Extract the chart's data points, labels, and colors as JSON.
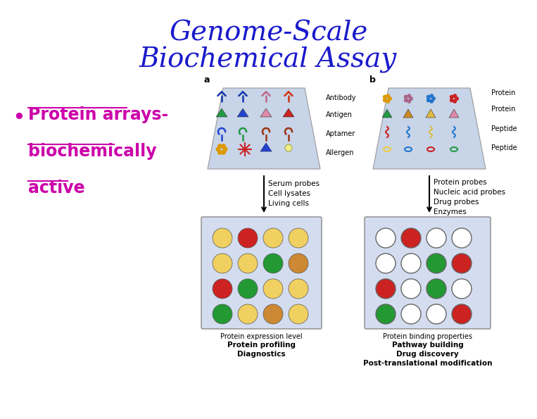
{
  "title_line1": "Genome-Scale",
  "title_line2": "Biochemical Assay",
  "title_color": "#1a1acc",
  "title_fontsize": 28,
  "title_fontstyle": "italic",
  "bullet_text_line1": "Protein arrays-",
  "bullet_text_line2": "biochemically",
  "bullet_text_line3": "active",
  "bullet_color": "#cc00aa",
  "bullet_fontsize": 17,
  "background_color": "#ffffff",
  "grid_a_colors": [
    [
      "#f0d060",
      "#cc2222",
      "#f0d060",
      "#f0d060"
    ],
    [
      "#f0d060",
      "#f0d060",
      "#229933",
      "#cc8833"
    ],
    [
      "#cc2222",
      "#229933",
      "#f0d060",
      "#f0d060"
    ],
    [
      "#229933",
      "#f0d060",
      "#cc8833",
      "#f0d060"
    ]
  ],
  "grid_b_colors": [
    [
      "white",
      "#cc2222",
      "white",
      "white"
    ],
    [
      "white",
      "white",
      "#229933",
      "#cc2222"
    ],
    [
      "#cc2222",
      "white",
      "#229933",
      "white"
    ],
    [
      "#229933",
      "white",
      "white",
      "#cc2222"
    ]
  ],
  "label_a_texts": [
    "Antibody",
    "Antigen",
    "Aptamer",
    "Allergen"
  ],
  "label_b_texts": [
    "Protein",
    "Protein",
    "Peptide",
    "Peptide"
  ],
  "arrow_a_texts": [
    "Serum probes",
    "Cell lysates",
    "Living cells"
  ],
  "arrow_b_texts": [
    "Protein probes",
    "Nucleic acid probes",
    "Drug probes",
    "Enzymes"
  ],
  "bottom_a_texts": [
    "Protein expression level",
    "Protein profiling",
    "Diagnostics"
  ],
  "bottom_b_texts": [
    "Protein binding properties",
    "Pathway building",
    "Drug discovery",
    "Post-translational modification"
  ]
}
